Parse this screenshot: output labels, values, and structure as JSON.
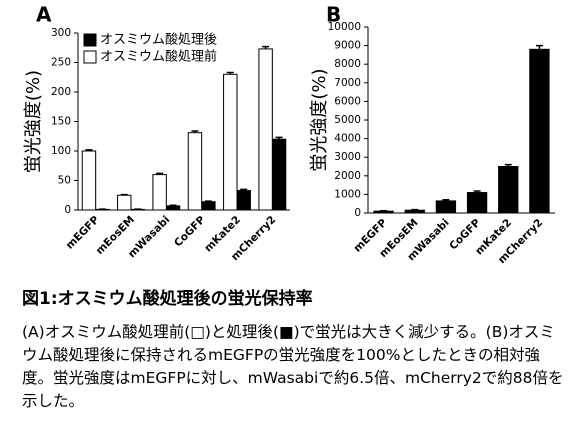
{
  "chart_data": [
    {
      "type": "bar",
      "panel_label": "A",
      "ylabel": "蛍光強度(%)",
      "categories": [
        "mEGFP",
        "mEosEM",
        "mWasabi",
        "CoGFP",
        "mKate2",
        "mCherry2"
      ],
      "series": [
        {
          "name": "オスミウム酸処理後",
          "color": "#000000",
          "values": [
            1,
            1,
            7,
            14,
            33,
            120
          ],
          "errors": [
            0.5,
            0.5,
            1,
            1,
            2,
            3
          ]
        },
        {
          "name": "オスミウム酸処理前",
          "color": "#ffffff",
          "values": [
            100,
            25,
            60,
            131,
            230,
            273
          ],
          "errors": [
            2,
            1,
            2,
            3,
            3,
            4
          ]
        }
      ],
      "ylim": [
        0,
        300
      ],
      "yticks": [
        0,
        50,
        100,
        150,
        200,
        250,
        300
      ],
      "legend": "upper left"
    },
    {
      "type": "bar",
      "panel_label": "B",
      "ylabel": "蛍光強度(%)",
      "categories": [
        "mEGFP",
        "mEosEM",
        "mWasabi",
        "CoGFP",
        "mKate2",
        "mCherry2"
      ],
      "values": [
        100,
        150,
        650,
        1100,
        2500,
        8800
      ],
      "errors": [
        20,
        30,
        60,
        80,
        100,
        200
      ],
      "color": "#000000",
      "ylim": [
        0,
        10000
      ],
      "yticks": [
        0,
        1000,
        2000,
        3000,
        4000,
        5000,
        6000,
        7000,
        8000,
        9000,
        10000
      ]
    }
  ],
  "caption": {
    "title": "図1:オスミウム酸処理後の蛍光保持率",
    "text": "(A)オスミウム酸処理前(□)と処理後(■)で蛍光は大きく減少する。(B)オスミウム酸処理後に保持されるmEGFPの蛍光強度を100%としたときの相対強度。蛍光強度はmEGFPに対し、mWasabiで約6.5倍、mCherry2で約88倍を示した。"
  }
}
